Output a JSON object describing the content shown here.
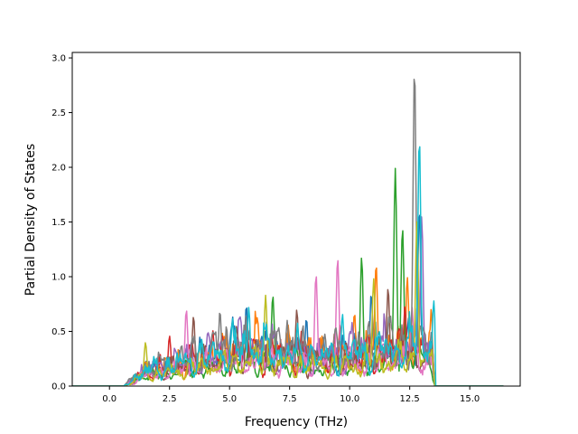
{
  "chart_data": {
    "type": "line",
    "title": "",
    "xlabel": "Frequency (THz)",
    "ylabel": "Partial Density of States",
    "xlim": [
      -1.55,
      17.1
    ],
    "ylim": [
      0,
      3.05
    ],
    "x_ticks": [
      "0.0",
      "2.5",
      "5.0",
      "7.5",
      "10.0",
      "12.5",
      "15.0"
    ],
    "y_ticks": [
      "0.0",
      "0.5",
      "1.0",
      "1.5",
      "2.0",
      "2.5",
      "3.0"
    ],
    "x_range": [
      -1.6,
      16.4
    ],
    "grid": false,
    "legend": "none",
    "series_colors": [
      "#1f77b4",
      "#ff7f0e",
      "#2ca02c",
      "#d62728",
      "#9467bd",
      "#8c564b",
      "#e377c2",
      "#7f7f7f",
      "#bcbd22",
      "#17becf"
    ],
    "series": [
      {
        "color": "#1f77b4",
        "peaks": [
          [
            5.7,
            0.74
          ],
          [
            8.2,
            0.62
          ],
          [
            10.9,
            0.85
          ],
          [
            12.9,
            1.62
          ]
        ]
      },
      {
        "color": "#ff7f0e",
        "peaks": [
          [
            6.1,
            0.55
          ],
          [
            10.2,
            0.67
          ],
          [
            11.1,
            1.12
          ],
          [
            12.4,
            1.0
          ]
        ]
      },
      {
        "color": "#2ca02c",
        "peaks": [
          [
            6.8,
            0.83
          ],
          [
            10.5,
            1.18
          ],
          [
            11.9,
            1.99
          ],
          [
            12.2,
            1.45
          ]
        ]
      },
      {
        "color": "#d62728",
        "peaks": [
          [
            2.5,
            0.46
          ],
          [
            4.3,
            0.51
          ],
          [
            9.6,
            0.56
          ],
          [
            12.3,
            0.73
          ]
        ]
      },
      {
        "color": "#9467bd",
        "peaks": [
          [
            3.4,
            0.4
          ],
          [
            6.9,
            0.51
          ],
          [
            10.1,
            0.58
          ],
          [
            13.0,
            1.55
          ]
        ]
      },
      {
        "color": "#8c564b",
        "peaks": [
          [
            3.5,
            0.64
          ],
          [
            5.7,
            0.55
          ],
          [
            7.8,
            0.7
          ],
          [
            11.6,
            0.9
          ]
        ]
      },
      {
        "color": "#e377c2",
        "peaks": [
          [
            3.2,
            0.7
          ],
          [
            8.6,
            1.02
          ],
          [
            9.5,
            1.17
          ],
          [
            12.6,
            0.72
          ]
        ]
      },
      {
        "color": "#7f7f7f",
        "peaks": [
          [
            4.6,
            0.69
          ],
          [
            7.4,
            0.6
          ],
          [
            12.7,
            2.91
          ],
          [
            13.4,
            0.5
          ]
        ]
      },
      {
        "color": "#bcbd22",
        "peaks": [
          [
            1.5,
            0.4
          ],
          [
            6.5,
            0.83
          ],
          [
            11.0,
            0.98
          ],
          [
            12.8,
            1.5
          ]
        ]
      },
      {
        "color": "#17becf",
        "peaks": [
          [
            5.8,
            0.72
          ],
          [
            9.7,
            0.66
          ],
          [
            12.9,
            2.27
          ],
          [
            13.5,
            0.78
          ]
        ]
      }
    ]
  }
}
